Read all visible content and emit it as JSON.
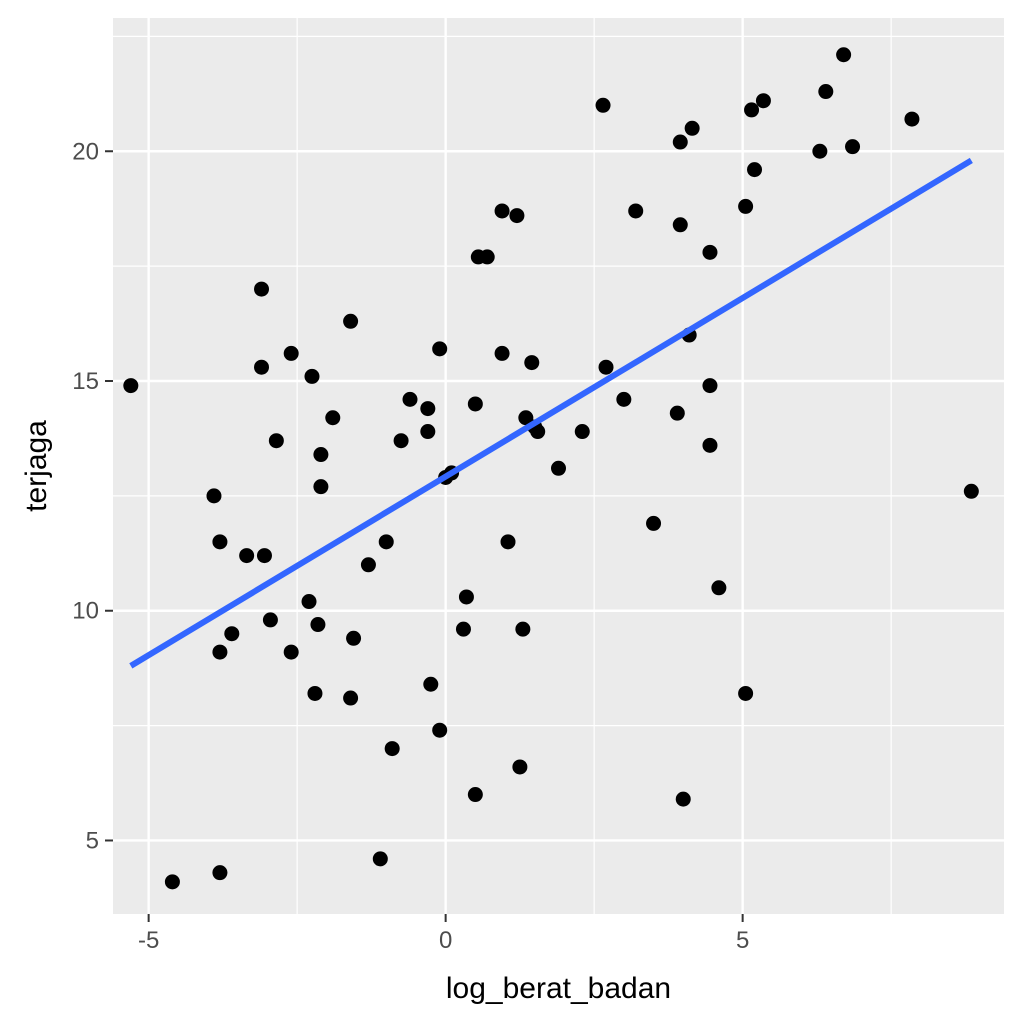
{
  "chart_data": {
    "type": "scatter",
    "title": "",
    "xlabel": "log_berat_badan",
    "ylabel": "terjaga",
    "xlim": [
      -5.6,
      9.4
    ],
    "ylim": [
      3.4,
      22.9
    ],
    "x_ticks": [
      -5,
      0,
      5
    ],
    "x_tick_labels": [
      "-5",
      "0",
      "5"
    ],
    "y_ticks": [
      5,
      10,
      15,
      20
    ],
    "y_tick_labels": [
      "5",
      "10",
      "15",
      "20"
    ],
    "grid": true,
    "legend": "none",
    "colors": {
      "panel": "#ebebeb",
      "grid": "#ffffff",
      "points": "#000000",
      "fit_line": "#3366ff"
    },
    "points": {
      "x": [
        -5.3,
        -4.6,
        -3.8,
        -3.9,
        -3.8,
        -3.8,
        -3.6,
        -3.35,
        -3.05,
        -3.1,
        -3.1,
        -2.95,
        -2.85,
        -2.6,
        -2.6,
        -2.3,
        -2.25,
        -2.2,
        -2.15,
        -2.1,
        -2.1,
        -1.9,
        -1.6,
        -1.6,
        -1.55,
        -1.3,
        -1.1,
        -1.0,
        -0.9,
        -0.75,
        -0.6,
        -0.3,
        -0.3,
        -0.25,
        -0.1,
        -0.1,
        0.0,
        0.1,
        0.3,
        0.35,
        0.5,
        0.5,
        0.55,
        0.7,
        0.95,
        0.95,
        1.05,
        1.2,
        1.25,
        1.3,
        1.35,
        1.45,
        1.5,
        1.55,
        1.9,
        2.3,
        2.65,
        2.7,
        3.0,
        3.2,
        3.5,
        3.9,
        3.95,
        3.95,
        4.0,
        4.1,
        4.15,
        4.45,
        4.45,
        4.45,
        4.6,
        5.05,
        5.05,
        5.15,
        5.2,
        5.35,
        6.3,
        6.4,
        6.7,
        6.85,
        7.85,
        8.85
      ],
      "y": [
        14.9,
        4.1,
        9.1,
        12.5,
        11.5,
        4.3,
        9.5,
        11.2,
        11.2,
        17.0,
        15.3,
        9.8,
        13.7,
        15.6,
        9.1,
        10.2,
        15.1,
        8.2,
        9.7,
        13.4,
        12.7,
        14.2,
        16.3,
        8.1,
        9.4,
        11.0,
        4.6,
        11.5,
        7.0,
        13.7,
        14.6,
        14.4,
        13.9,
        8.4,
        7.4,
        15.7,
        12.9,
        13.0,
        9.6,
        10.3,
        14.5,
        6.0,
        17.7,
        17.7,
        15.6,
        18.7,
        11.5,
        18.6,
        6.6,
        9.6,
        14.2,
        15.4,
        14.0,
        13.9,
        13.1,
        13.9,
        21.0,
        15.3,
        14.6,
        18.7,
        11.9,
        14.3,
        18.4,
        20.2,
        5.9,
        16.0,
        20.5,
        17.8,
        14.9,
        13.6,
        10.5,
        8.2,
        18.8,
        20.9,
        19.6,
        21.1,
        20.0,
        21.3,
        22.1,
        20.1,
        20.7,
        12.6
      ]
    },
    "fit_line": {
      "method": "linear",
      "x": [
        -5.3,
        8.85
      ],
      "y": [
        8.8,
        19.8
      ]
    }
  }
}
